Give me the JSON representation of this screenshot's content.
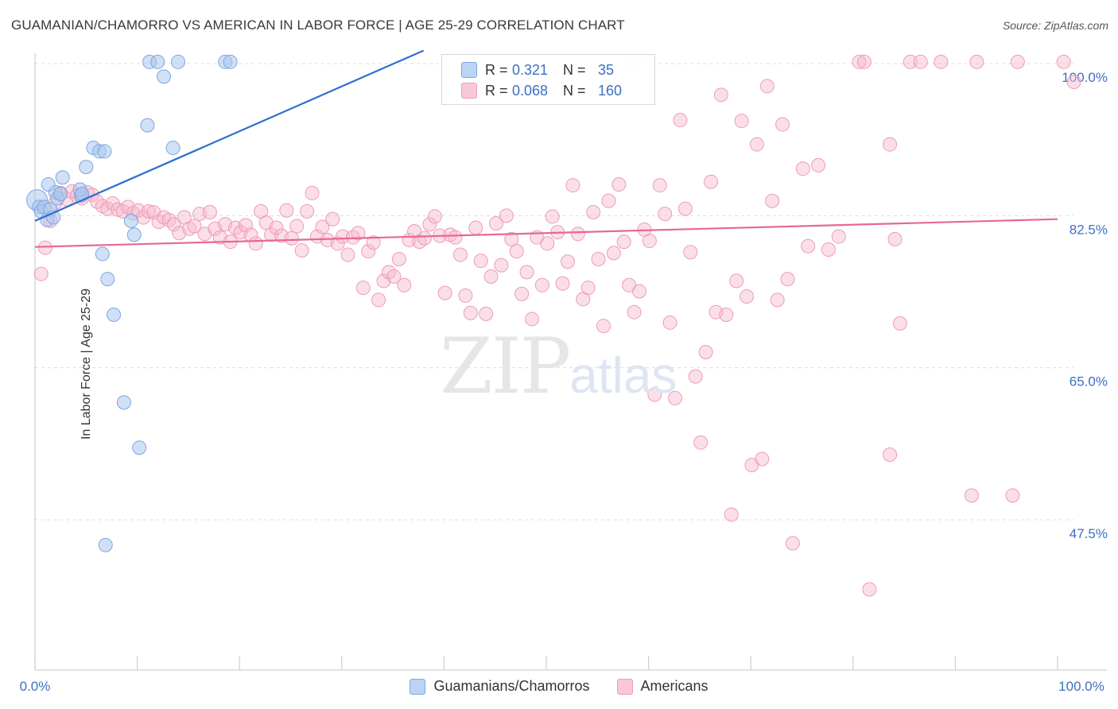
{
  "title": "GUAMANIAN/CHAMORRO VS AMERICAN IN LABOR FORCE | AGE 25-29 CORRELATION CHART",
  "source": "Source: ZipAtlas.com",
  "watermark": {
    "zip": "ZIP",
    "atlas": "atlas"
  },
  "legend": {
    "rows": [
      {
        "r_label": "R =",
        "r_value": "0.321",
        "n_label": "N =",
        "n_value": "35"
      },
      {
        "r_label": "R =",
        "r_value": "0.068",
        "n_label": "N =",
        "n_value": "160"
      }
    ]
  },
  "bottom_legend": {
    "series1": "Guamanians/Chamorros",
    "series2": "Americans"
  },
  "colors": {
    "blue_fill": "#a9c6ee",
    "blue_stroke": "#7ea7e0",
    "blue_line": "#2f6fcc",
    "pink_fill": "#f7b8cc",
    "pink_stroke": "#ee9bb6",
    "pink_line": "#e6679a",
    "tick_label": "#3d6fc4",
    "grid": "#dcdcdc"
  },
  "chart_data": {
    "type": "scatter",
    "title": "GUAMANIAN/CHAMORRO VS AMERICAN IN LABOR FORCE | AGE 25-29 CORRELATION CHART",
    "xlabel": "",
    "ylabel": "In Labor Force | Age 25-29",
    "xlim": [
      0,
      100
    ],
    "ylim": [
      29.5,
      101.5
    ],
    "x_tick_labels": [
      "0.0%",
      "100.0%"
    ],
    "y_ticks": [
      100.0,
      82.5,
      65.0,
      47.5
    ],
    "y_tick_labels": [
      "100.0%",
      "82.5%",
      "65.0%",
      "47.5%"
    ],
    "grid": true,
    "series": [
      {
        "name": "Guamanians/Chamorros",
        "color": "#a9c6ee",
        "R": 0.321,
        "N": 35,
        "trend": {
          "x": [
            0,
            38
          ],
          "y": [
            81.9,
            101.5
          ]
        },
        "points": [
          [
            0.2,
            84.3
          ],
          [
            0.4,
            83.5
          ],
          [
            0.6,
            83.0
          ],
          [
            0.9,
            83.5
          ],
          [
            1.2,
            82.0
          ],
          [
            1.5,
            83.2
          ],
          [
            1.8,
            82.3
          ],
          [
            2.0,
            85.2
          ],
          [
            2.2,
            84.5
          ],
          [
            2.5,
            85.0
          ],
          [
            1.3,
            86.1
          ],
          [
            2.7,
            86.9
          ],
          [
            4.5,
            84.8
          ],
          [
            4.4,
            85.5
          ],
          [
            4.6,
            85.0
          ],
          [
            5.0,
            88.1
          ],
          [
            5.7,
            90.3
          ],
          [
            6.6,
            78.1
          ],
          [
            7.1,
            75.2
          ],
          [
            7.7,
            71.1
          ],
          [
            9.7,
            80.3
          ],
          [
            6.3,
            89.9
          ],
          [
            6.8,
            89.9
          ],
          [
            9.4,
            81.9
          ],
          [
            11.0,
            92.9
          ],
          [
            11.2,
            100.2
          ],
          [
            12.0,
            100.2
          ],
          [
            12.6,
            98.5
          ],
          [
            14.0,
            100.2
          ],
          [
            18.6,
            100.2
          ],
          [
            19.1,
            100.2
          ],
          [
            8.7,
            61.0
          ],
          [
            10.2,
            55.8
          ],
          [
            6.9,
            44.6
          ],
          [
            13.5,
            90.3
          ]
        ]
      },
      {
        "name": "Americans",
        "color": "#f7b8cc",
        "R": 0.068,
        "N": 160,
        "trend": {
          "x": [
            0,
            100
          ],
          "y": [
            78.9,
            82.1
          ]
        },
        "points": [
          [
            0.6,
            75.8
          ],
          [
            1.0,
            78.8
          ],
          [
            1.5,
            81.9
          ],
          [
            2.0,
            84.0
          ],
          [
            2.5,
            85.1
          ],
          [
            3.1,
            84.4
          ],
          [
            3.6,
            85.3
          ],
          [
            4.1,
            84.8
          ],
          [
            4.6,
            84.5
          ],
          [
            5.1,
            85.2
          ],
          [
            5.6,
            84.9
          ],
          [
            6.1,
            84.1
          ],
          [
            6.6,
            83.6
          ],
          [
            7.1,
            83.3
          ],
          [
            7.6,
            83.9
          ],
          [
            8.1,
            83.2
          ],
          [
            8.6,
            83.0
          ],
          [
            9.1,
            83.5
          ],
          [
            9.6,
            82.8
          ],
          [
            10.1,
            83.1
          ],
          [
            10.6,
            82.3
          ],
          [
            11.1,
            83.0
          ],
          [
            11.6,
            82.9
          ],
          [
            12.1,
            81.8
          ],
          [
            12.6,
            82.3
          ],
          [
            13.1,
            82.0
          ],
          [
            13.6,
            81.5
          ],
          [
            14.1,
            80.5
          ],
          [
            14.6,
            82.3
          ],
          [
            15.1,
            81.0
          ],
          [
            15.6,
            81.3
          ],
          [
            16.1,
            82.7
          ],
          [
            16.6,
            80.4
          ],
          [
            17.1,
            82.9
          ],
          [
            17.6,
            81.0
          ],
          [
            18.1,
            80.0
          ],
          [
            18.6,
            81.5
          ],
          [
            19.1,
            79.5
          ],
          [
            19.6,
            81.1
          ],
          [
            20.1,
            80.6
          ],
          [
            20.6,
            81.4
          ],
          [
            21.1,
            80.3
          ],
          [
            21.6,
            79.3
          ],
          [
            22.1,
            83.0
          ],
          [
            22.6,
            81.7
          ],
          [
            23.1,
            80.3
          ],
          [
            23.6,
            81.1
          ],
          [
            24.1,
            80.2
          ],
          [
            24.6,
            83.1
          ],
          [
            25.1,
            79.9
          ],
          [
            25.6,
            81.3
          ],
          [
            26.1,
            78.5
          ],
          [
            26.6,
            83.0
          ],
          [
            27.1,
            85.1
          ],
          [
            27.6,
            80.1
          ],
          [
            28.1,
            81.2
          ],
          [
            28.6,
            79.7
          ],
          [
            29.1,
            82.1
          ],
          [
            29.6,
            79.3
          ],
          [
            30.1,
            80.1
          ],
          [
            30.6,
            78.0
          ],
          [
            31.1,
            80.0
          ],
          [
            31.6,
            80.5
          ],
          [
            32.1,
            74.2
          ],
          [
            32.6,
            78.4
          ],
          [
            33.1,
            79.4
          ],
          [
            33.6,
            72.8
          ],
          [
            34.1,
            75.0
          ],
          [
            34.6,
            76.0
          ],
          [
            35.1,
            75.5
          ],
          [
            35.6,
            77.5
          ],
          [
            36.1,
            74.5
          ],
          [
            36.6,
            79.7
          ],
          [
            37.1,
            80.7
          ],
          [
            37.6,
            79.5
          ],
          [
            38.1,
            79.9
          ],
          [
            38.6,
            81.5
          ],
          [
            39.1,
            82.4
          ],
          [
            39.6,
            80.2
          ],
          [
            40.1,
            73.6
          ],
          [
            40.6,
            80.3
          ],
          [
            41.1,
            80.0
          ],
          [
            41.6,
            78.0
          ],
          [
            42.1,
            73.3
          ],
          [
            42.6,
            71.3
          ],
          [
            43.1,
            81.1
          ],
          [
            43.6,
            77.3
          ],
          [
            44.1,
            71.2
          ],
          [
            44.6,
            75.5
          ],
          [
            45.1,
            81.6
          ],
          [
            45.6,
            76.8
          ],
          [
            46.1,
            82.5
          ],
          [
            46.6,
            79.8
          ],
          [
            47.1,
            78.4
          ],
          [
            47.6,
            73.5
          ],
          [
            48.1,
            76.0
          ],
          [
            48.6,
            70.6
          ],
          [
            49.1,
            80.0
          ],
          [
            49.6,
            74.5
          ],
          [
            50.1,
            79.3
          ],
          [
            50.6,
            82.4
          ],
          [
            51.1,
            80.6
          ],
          [
            51.6,
            74.7
          ],
          [
            52.1,
            77.2
          ],
          [
            52.6,
            86.0
          ],
          [
            53.1,
            80.4
          ],
          [
            53.6,
            72.9
          ],
          [
            54.1,
            74.2
          ],
          [
            54.6,
            82.9
          ],
          [
            55.1,
            77.5
          ],
          [
            55.6,
            69.8
          ],
          [
            56.1,
            84.2
          ],
          [
            56.6,
            78.2
          ],
          [
            57.1,
            86.1
          ],
          [
            57.6,
            79.5
          ],
          [
            58.1,
            74.5
          ],
          [
            58.6,
            71.4
          ],
          [
            59.1,
            73.8
          ],
          [
            59.6,
            80.9
          ],
          [
            60.1,
            79.6
          ],
          [
            60.6,
            61.9
          ],
          [
            61.1,
            86.0
          ],
          [
            61.6,
            82.7
          ],
          [
            62.1,
            70.2
          ],
          [
            62.6,
            61.5
          ],
          [
            63.1,
            93.5
          ],
          [
            63.6,
            83.3
          ],
          [
            64.1,
            78.3
          ],
          [
            64.6,
            64.0
          ],
          [
            65.1,
            56.4
          ],
          [
            65.6,
            66.8
          ],
          [
            66.1,
            86.4
          ],
          [
            66.6,
            71.4
          ],
          [
            67.1,
            96.4
          ],
          [
            67.6,
            71.1
          ],
          [
            68.1,
            48.1
          ],
          [
            68.6,
            75.0
          ],
          [
            69.1,
            93.4
          ],
          [
            69.6,
            73.2
          ],
          [
            70.1,
            53.8
          ],
          [
            70.6,
            90.7
          ],
          [
            71.1,
            54.5
          ],
          [
            71.6,
            97.4
          ],
          [
            72.1,
            84.2
          ],
          [
            72.6,
            72.8
          ],
          [
            73.1,
            93.0
          ],
          [
            73.6,
            75.2
          ],
          [
            74.1,
            44.8
          ],
          [
            75.1,
            87.9
          ],
          [
            75.6,
            79.0
          ],
          [
            76.6,
            88.3
          ],
          [
            77.6,
            78.6
          ],
          [
            78.6,
            80.1
          ],
          [
            80.6,
            100.2
          ],
          [
            81.6,
            39.5
          ],
          [
            81.1,
            100.2
          ],
          [
            83.6,
            55.0
          ],
          [
            83.6,
            90.7
          ],
          [
            84.1,
            79.8
          ],
          [
            84.6,
            70.1
          ],
          [
            85.6,
            100.2
          ],
          [
            86.6,
            100.2
          ],
          [
            88.6,
            100.2
          ],
          [
            91.6,
            50.3
          ],
          [
            92.1,
            100.2
          ],
          [
            95.6,
            50.3
          ],
          [
            96.1,
            100.2
          ],
          [
            100.6,
            100.2
          ],
          [
            101.6,
            97.9
          ],
          [
            58.6,
            100.2
          ]
        ]
      }
    ]
  }
}
